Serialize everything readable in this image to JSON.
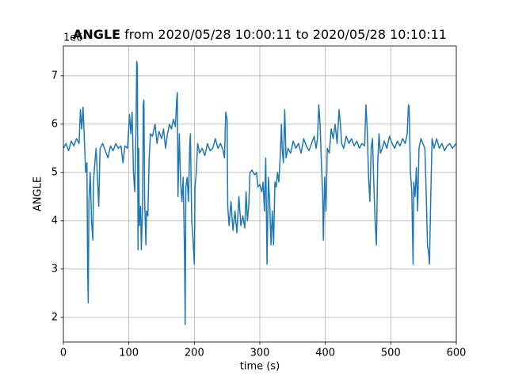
{
  "chart_data": {
    "type": "line",
    "title": [
      "ANGLE",
      "from 2020/05/28 10:00:11 to 2020/05/28 10:10:11"
    ],
    "xlabel": "time (s)",
    "ylabel": "ANGLE",
    "y_offset_label": "1e6",
    "xlim": [
      0,
      600
    ],
    "ylim": [
      1.49,
      7.62
    ],
    "xticks": [
      0,
      100,
      200,
      300,
      400,
      500,
      600
    ],
    "yticks": [
      2,
      3,
      4,
      5,
      6,
      7
    ],
    "grid": true,
    "color": "#1f77b4",
    "x": [
      0,
      4,
      8,
      12,
      16,
      20,
      24,
      26,
      28,
      30,
      32,
      34,
      36,
      37,
      38,
      39,
      41,
      43,
      45,
      46,
      48,
      50,
      52,
      54,
      56,
      60,
      64,
      68,
      72,
      76,
      80,
      84,
      88,
      91,
      94,
      98,
      101,
      103,
      105,
      107,
      109,
      111,
      112,
      113,
      114,
      115,
      116,
      118,
      119,
      121,
      122,
      123,
      124,
      126,
      127,
      129,
      131,
      133,
      136,
      140,
      143,
      146,
      150,
      153,
      156,
      159,
      162,
      165,
      168,
      171,
      173,
      174,
      175,
      177,
      179,
      181,
      183,
      185,
      186,
      187,
      189,
      191,
      193,
      194,
      196,
      198,
      200,
      201,
      203,
      205,
      208,
      212,
      216,
      220,
      224,
      228,
      232,
      236,
      240,
      244,
      246,
      248,
      250,
      251,
      253,
      256,
      259,
      262,
      265,
      268,
      271,
      274,
      277,
      279,
      281,
      283,
      285,
      288,
      292,
      295,
      297,
      300,
      303,
      305,
      307,
      309,
      311,
      313,
      315,
      317,
      319,
      321,
      323,
      325,
      327,
      329,
      331,
      333,
      334,
      336,
      338,
      340,
      343,
      347,
      351,
      355,
      359,
      363,
      367,
      371,
      375,
      379,
      383,
      386,
      388,
      390,
      392,
      394,
      396,
      397,
      399,
      401,
      403,
      406,
      409,
      412,
      415,
      418,
      421,
      423,
      425,
      428,
      432,
      436,
      440,
      444,
      448,
      452,
      456,
      460,
      462,
      464,
      466,
      468,
      470,
      472,
      474,
      476,
      478,
      480,
      482,
      484,
      487,
      490,
      494,
      498,
      502,
      506,
      510,
      514,
      518,
      522,
      525,
      527,
      528,
      530,
      532,
      534,
      535,
      537,
      539,
      541,
      543,
      546,
      549,
      552,
      554,
      556,
      558,
      559,
      561,
      563,
      566,
      570,
      574,
      578,
      582,
      586,
      590,
      594,
      600
    ],
    "values": [
      5.5,
      5.6,
      5.45,
      5.65,
      5.55,
      5.7,
      5.6,
      6.3,
      5.9,
      6.35,
      5.7,
      5.0,
      5.2,
      3.0,
      2.3,
      4.4,
      5.0,
      4.0,
      3.6,
      4.8,
      5.2,
      5.5,
      4.9,
      4.3,
      5.5,
      5.6,
      5.45,
      5.3,
      5.55,
      5.45,
      5.6,
      5.5,
      5.55,
      5.2,
      5.55,
      5.5,
      6.2,
      5.8,
      6.25,
      5.0,
      4.6,
      6.0,
      7.3,
      7.2,
      3.4,
      5.5,
      3.9,
      4.3,
      3.4,
      4.3,
      6.4,
      6.5,
      4.5,
      3.5,
      4.2,
      4.1,
      5.3,
      5.8,
      5.75,
      6.0,
      5.6,
      5.85,
      5.7,
      5.9,
      5.5,
      5.8,
      6.0,
      5.9,
      6.1,
      5.95,
      6.5,
      6.65,
      4.5,
      5.8,
      4.8,
      4.4,
      4.9,
      3.3,
      1.85,
      4.7,
      4.9,
      4.4,
      5.6,
      5.8,
      4.0,
      3.6,
      3.1,
      4.7,
      5.0,
      5.6,
      5.4,
      5.5,
      5.35,
      5.6,
      5.45,
      5.5,
      5.7,
      5.5,
      5.6,
      5.45,
      5.3,
      6.25,
      6.1,
      4.3,
      3.9,
      4.4,
      3.8,
      4.2,
      3.75,
      4.5,
      3.9,
      4.1,
      3.85,
      4.6,
      4.0,
      4.3,
      5.0,
      5.05,
      4.95,
      5.0,
      4.7,
      4.75,
      4.6,
      4.8,
      4.2,
      5.3,
      3.1,
      4.9,
      4.4,
      3.5,
      4.2,
      3.5,
      4.8,
      4.7,
      5.0,
      4.8,
      5.3,
      6.0,
      5.5,
      5.2,
      6.3,
      5.3,
      5.5,
      5.4,
      5.65,
      5.5,
      5.6,
      5.4,
      5.7,
      5.55,
      5.45,
      5.6,
      5.75,
      5.5,
      5.7,
      6.4,
      6.0,
      5.2,
      4.5,
      3.6,
      4.9,
      4.2,
      5.5,
      5.4,
      5.9,
      5.7,
      6.0,
      5.6,
      6.3,
      6.0,
      5.6,
      5.5,
      5.75,
      5.6,
      5.7,
      5.55,
      5.65,
      5.5,
      5.6,
      5.55,
      6.4,
      5.9,
      4.9,
      4.4,
      5.5,
      5.7,
      4.8,
      4.0,
      3.5,
      5.2,
      5.8,
      5.4,
      5.5,
      5.65,
      5.5,
      5.75,
      5.6,
      5.5,
      5.65,
      5.55,
      5.7,
      5.6,
      5.8,
      6.4,
      6.35,
      5.0,
      4.6,
      3.1,
      4.8,
      4.5,
      5.1,
      4.2,
      5.5,
      5.7,
      5.6,
      5.5,
      4.6,
      3.5,
      3.3,
      3.1,
      4.5,
      5.7,
      5.5,
      5.7,
      5.5,
      5.6,
      5.45,
      5.55,
      5.6,
      5.5,
      5.6
    ]
  }
}
